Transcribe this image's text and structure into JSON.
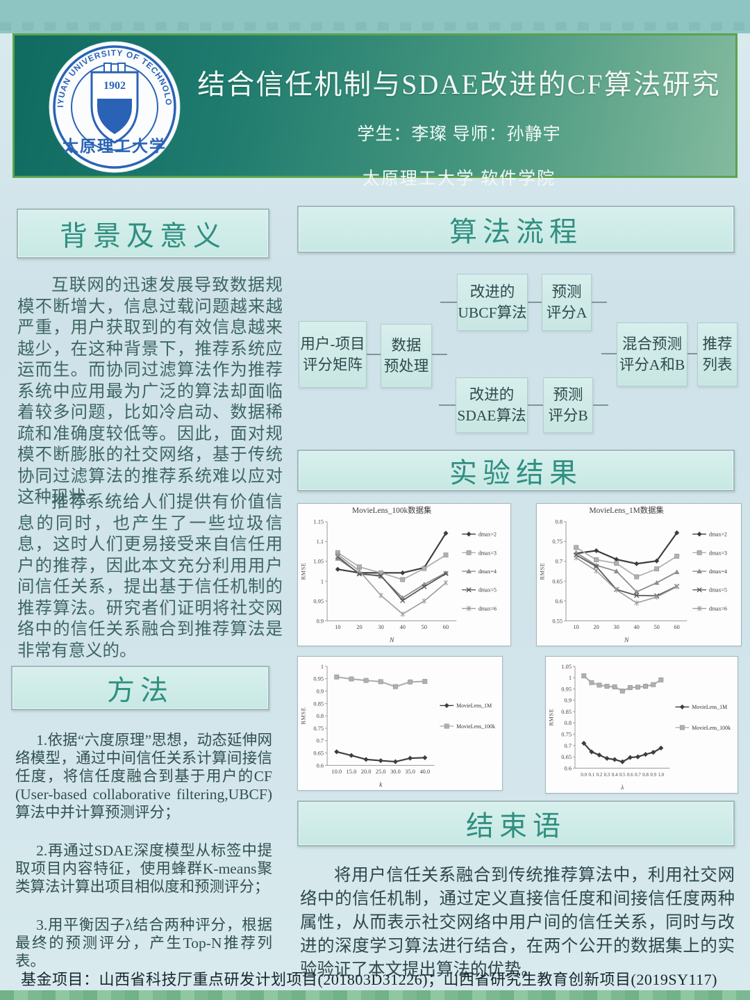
{
  "header": {
    "title": "结合信任机制与SDAE改进的CF算法研究",
    "authors": "学生：李璨  导师：孙静宇",
    "affiliation": "太原理工大学 软件学院",
    "logo": {
      "ring_text": "TAIYUAN UNIVERSITY OF TECHNOLOGY",
      "year": "1902",
      "cn_name": "太原理工大学",
      "blue": "#2a63b5"
    }
  },
  "sections": {
    "background": {
      "title": "背景及意义",
      "paragraphs": [
        "互联网的迅速发展导致数据规模不断增大，信息过载问题越来越严重，用户获取到的有效信息越来越少，在这种背景下，推荐系统应运而生。而协同过滤算法作为推荐系统中应用最为广泛的算法却面临着较多问题，比如冷启动、数据稀疏和准确度较低等。因此，面对规模不断膨胀的社交网络，基于传统协同过滤算法的推荐系统难以应对这种现状。",
        "推荐系统给人们提供有价值信息的同时，也产生了一些垃圾信息，这时人们更易接受来自信任用户的推荐，因此本文充分利用用户间信任关系，提出基于信任机制的推荐算法。研究者们证明将社交网络中的信任关系融合到推荐算法是非常有意义的。"
      ]
    },
    "method": {
      "title": "方法",
      "items": [
        "1.依据“六度原理”思想，动态延伸网络模型，通过中间信任关系计算间接信任度，将信任度融合到基于用户的CF (User-based collaborative filtering,UBCF)算法中并计算预测评分；",
        "2.再通过SDAE深度模型从标签中提取项目内容特征，使用蜂群K-means聚类算法计算出项目相似度和预测评分；",
        "3.用平衡因子λ结合两种评分，根据最终的预测评分，产生Top-N推荐列表。"
      ]
    },
    "flow": {
      "title": "算法流程",
      "nodes": [
        {
          "l1": "用户-项目",
          "l2": "评分矩阵"
        },
        {
          "l1": "数据",
          "l2": "预处理"
        },
        {
          "l1": "改进的",
          "l2": "UBCF算法"
        },
        {
          "l1": "预测",
          "l2": "评分A"
        },
        {
          "l1": "改进的",
          "l2": "SDAE算法"
        },
        {
          "l1": "预测",
          "l2": "评分B"
        },
        {
          "l1": "混合预测",
          "l2": "评分A和B"
        },
        {
          "l1": "推荐",
          "l2": "列表"
        }
      ]
    },
    "results": {
      "title": "实验结果"
    },
    "conclusion": {
      "title": "结束语",
      "text": "将用户信任关系融合到传统推荐算法中，利用社交网络中的信任机制，通过定义直接信任度和间接信任度两种属性，从而表示社交网络中用户间的信任关系，同时与改进的深度学习算法进行结合，在两个公开的数据集上的实验验证了本文提出算法的优势。"
    }
  },
  "footer": {
    "text": "基金项目：山西省科技厅重点研发计划项目(201803D31226)；山西省研究生教育创新项目(2019SY117)"
  },
  "chart_data": [
    {
      "type": "line",
      "title": "MovieLens_100k数据集",
      "xlabel": "N",
      "ylabel": "RMSE",
      "categories": [
        "10",
        "20",
        "30",
        "40",
        "50",
        "60"
      ],
      "ylim": [
        0.9,
        1.15
      ],
      "yticks": [
        "0.9",
        "0.95",
        "1",
        "1.05",
        "1.1",
        "1.15"
      ],
      "legend_position": "right",
      "grid": false,
      "series": [
        {
          "name": "dmax=2",
          "marker": "diamond",
          "color": "#3d3d3d",
          "width": 2.2,
          "values": [
            1.03,
            1.021,
            1.021,
            1.021,
            1.034,
            1.121
          ]
        },
        {
          "name": "dmax=3",
          "marker": "square",
          "color": "#b0b0b0",
          "width": 1.8,
          "values": [
            1.072,
            1.036,
            1.021,
            1.004,
            1.032,
            1.066
          ]
        },
        {
          "name": "dmax=4",
          "marker": "triangle",
          "color": "#8c8c8c",
          "width": 1.8,
          "values": [
            1.057,
            1.02,
            1.012,
            0.958,
            0.992,
            1.021
          ]
        },
        {
          "name": "dmax=5",
          "marker": "x",
          "color": "#575757",
          "width": 1.8,
          "values": [
            1.062,
            1.018,
            1.014,
            0.951,
            0.986,
            1.019
          ]
        },
        {
          "name": "dmax=6",
          "marker": "star",
          "color": "#9b9b9b",
          "width": 1.6,
          "values": [
            1.067,
            1.026,
            0.964,
            0.917,
            0.95,
            0.996
          ]
        }
      ]
    },
    {
      "type": "line",
      "title": "MovieLens_1M数据集",
      "xlabel": "N",
      "ylabel": "RMSE",
      "categories": [
        "10",
        "20",
        "30",
        "40",
        "50",
        "60"
      ],
      "ylim": [
        0.55,
        0.8
      ],
      "yticks": [
        "0.55",
        "0.6",
        "0.65",
        "0.7",
        "0.75",
        "0.8"
      ],
      "legend_position": "right",
      "grid": false,
      "series": [
        {
          "name": "dmax=2",
          "marker": "diamond",
          "color": "#3d3d3d",
          "width": 2.2,
          "values": [
            0.72,
            0.727,
            0.705,
            0.694,
            0.701,
            0.772
          ]
        },
        {
          "name": "dmax=3",
          "marker": "square",
          "color": "#b0b0b0",
          "width": 1.8,
          "values": [
            0.735,
            0.704,
            0.695,
            0.661,
            0.681,
            0.713
          ]
        },
        {
          "name": "dmax=4",
          "marker": "triangle",
          "color": "#8c8c8c",
          "width": 1.8,
          "values": [
            0.722,
            0.69,
            0.675,
            0.623,
            0.646,
            0.673
          ]
        },
        {
          "name": "dmax=5",
          "marker": "x",
          "color": "#575757",
          "width": 1.8,
          "values": [
            0.716,
            0.687,
            0.629,
            0.614,
            0.613,
            0.637
          ]
        },
        {
          "name": "dmax=6",
          "marker": "star",
          "color": "#9b9b9b",
          "width": 1.6,
          "values": [
            0.709,
            0.676,
            0.628,
            0.595,
            0.61,
            0.636
          ]
        }
      ]
    },
    {
      "type": "line",
      "title": "",
      "xlabel": "k",
      "ylabel": "RMSE",
      "categories": [
        "10.0",
        "15.0",
        "20.0",
        "25.0",
        "30.0",
        "35.0",
        "40.0"
      ],
      "ylim": [
        0.6,
        1.0
      ],
      "yticks": [
        "0.6",
        "0.65",
        "0.7",
        "0.75",
        "0.8",
        "0.85",
        "0.9",
        "0.95",
        "1"
      ],
      "legend_position": "right",
      "grid": false,
      "series": [
        {
          "name": "MovieLens_1M",
          "marker": "diamond",
          "color": "#3d3d3d",
          "width": 2.2,
          "values": [
            0.655,
            0.64,
            0.624,
            0.619,
            0.615,
            0.629,
            0.631
          ]
        },
        {
          "name": "MovieLens_100k",
          "marker": "square",
          "color": "#b0b0b0",
          "width": 2.2,
          "values": [
            0.957,
            0.949,
            0.943,
            0.938,
            0.918,
            0.937,
            0.939
          ]
        }
      ]
    },
    {
      "type": "line",
      "title": "",
      "xlabel": "λ",
      "ylabel": "RMSE",
      "categories": [
        "0.0",
        "0.1",
        "0.2",
        "0.3",
        "0.4",
        "0.5",
        "0.6",
        "0.7",
        "0.8",
        "0.9",
        "1.0"
      ],
      "ylim": [
        0.6,
        1.05
      ],
      "yticks": [
        "0.6",
        "0.65",
        "0.7",
        "0.75",
        "0.8",
        "0.85",
        "0.9",
        "0.95",
        "1",
        "1.05"
      ],
      "legend_position": "right",
      "grid": false,
      "series": [
        {
          "name": "MovieLens_1M",
          "marker": "diamond",
          "color": "#3d3d3d",
          "width": 2.2,
          "values": [
            0.71,
            0.672,
            0.658,
            0.643,
            0.638,
            0.628,
            0.647,
            0.65,
            0.661,
            0.67,
            0.689
          ]
        },
        {
          "name": "MovieLens_100k",
          "marker": "square",
          "color": "#b0b0b0",
          "width": 2.2,
          "values": [
            1.008,
            0.978,
            0.967,
            0.962,
            0.959,
            0.941,
            0.956,
            0.958,
            0.962,
            0.969,
            0.99
          ]
        }
      ]
    }
  ]
}
